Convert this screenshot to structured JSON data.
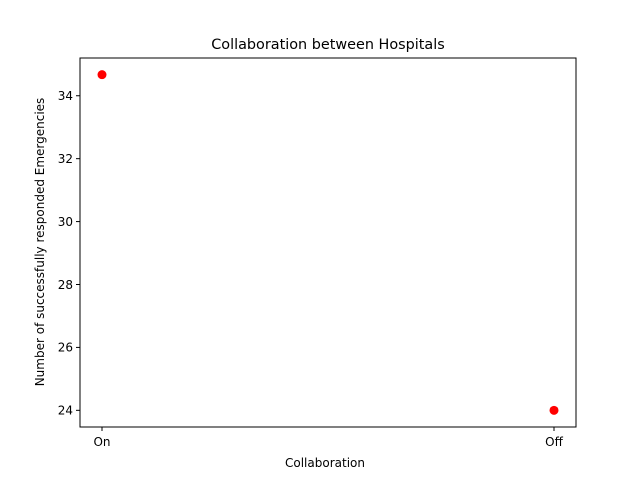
{
  "chart_data": {
    "type": "scatter",
    "title": "Collaboration between Hospitals",
    "xlabel": "Collaboration",
    "ylabel": "Number of successfully responded Emergencies",
    "categories": [
      "On",
      "Off"
    ],
    "series": [
      {
        "values": [
          34.67,
          24.0
        ],
        "color": "#ff0000"
      }
    ],
    "ylim": [
      23.47,
      35.2
    ],
    "yticks": [
      24,
      26,
      28,
      30,
      32,
      34
    ],
    "grid": false
  }
}
